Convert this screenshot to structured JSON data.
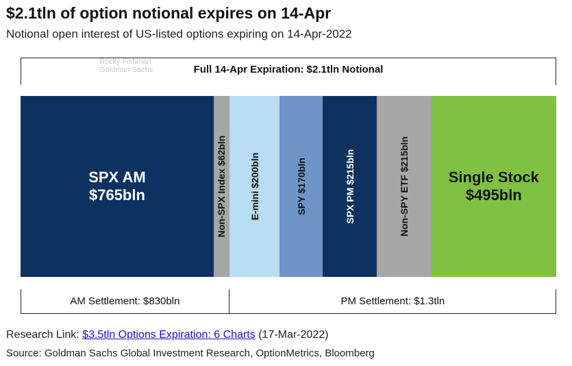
{
  "header": {
    "title": "$2.1tln of option notional expires on 14-Apr",
    "subtitle": "Notional open interest of US-listed options expiring on 14-Apr-2022"
  },
  "watermark": {
    "line1": "Rocky Fishman",
    "line2": "Goldman Sachs"
  },
  "chart_data": {
    "type": "bar",
    "title": "$2.1tln of option notional expires on 14-Apr",
    "subtitle": "Notional open interest of US-listed options expiring on 14-Apr-2022",
    "total_label": "Full 14-Apr Expiration: $2.1tln Notional",
    "categories": [
      "SPX AM",
      "Non-SPX Index",
      "E-mini",
      "SPY",
      "SPX PM",
      "Non-SPY ETF",
      "Single Stock"
    ],
    "values": [
      765,
      62,
      200,
      170,
      215,
      215,
      495
    ],
    "unit": "bln",
    "segments": [
      {
        "line1": "SPX AM",
        "line2": "$765bln",
        "value": 765,
        "color": "#0d3260",
        "text_color": "#ffffff",
        "orientation": "horizontal"
      },
      {
        "line1": "Non-SPX Index $62bln",
        "value": 62,
        "color": "#a6a6a6",
        "text_color": "#111111",
        "orientation": "vertical"
      },
      {
        "line1": "E-mini $200bln",
        "value": 200,
        "color": "#b8dcf2",
        "text_color": "#111111",
        "orientation": "vertical"
      },
      {
        "line1": "SPY $170bln",
        "value": 170,
        "color": "#6f94c6",
        "text_color": "#111111",
        "orientation": "vertical"
      },
      {
        "line1": "SPX PM $215bln",
        "value": 215,
        "color": "#0d3260",
        "text_color": "#ffffff",
        "orientation": "vertical"
      },
      {
        "line1": "Non-SPY ETF $215bln",
        "value": 215,
        "color": "#a6a6a6",
        "text_color": "#111111",
        "orientation": "vertical"
      },
      {
        "line1": "Single Stock",
        "line2": "$495bln",
        "value": 495,
        "color": "#7fc241",
        "text_color": "#111111",
        "orientation": "horizontal"
      }
    ],
    "groups": [
      {
        "label": "AM Settlement: $830bln",
        "value": 830,
        "segment_count": 2
      },
      {
        "label": "PM Settlement: $1.3tln",
        "value": 1300,
        "segment_count": 5
      }
    ]
  },
  "footer": {
    "research_prefix": "Research Link: ",
    "research_link_text": "$3.5tln Options Expiration: 6 Charts",
    "research_date": " (17-Mar-2022)",
    "source": "Source: Goldman Sachs Global Investment Research, OptionMetrics, Bloomberg"
  }
}
